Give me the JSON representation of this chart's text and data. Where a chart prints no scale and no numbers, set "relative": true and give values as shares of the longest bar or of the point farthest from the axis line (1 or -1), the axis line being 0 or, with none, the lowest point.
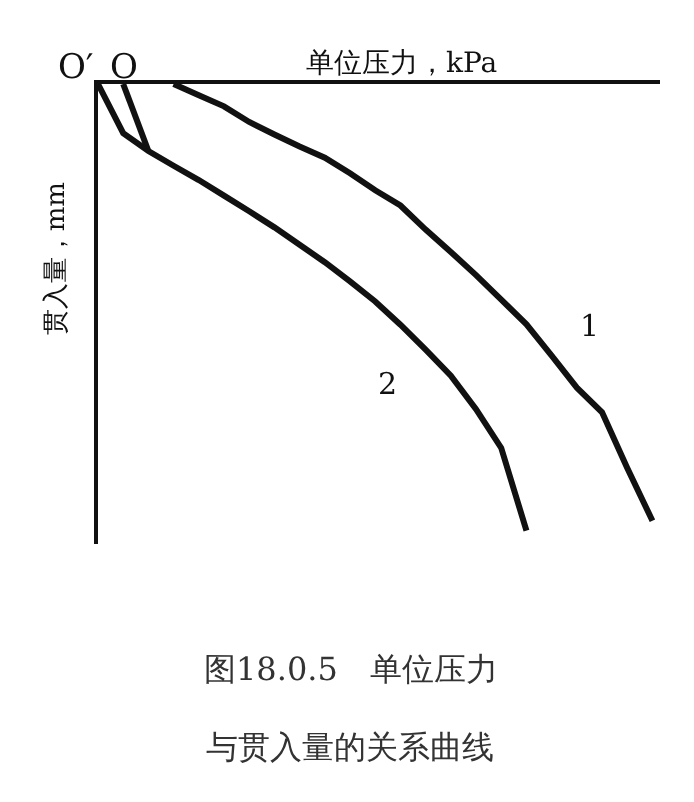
{
  "chart_data": {
    "type": "line",
    "relative": true,
    "xlabel": "单位压力，kPa",
    "ylabel": "贯入量，mm",
    "marker": "none",
    "line_style": "solid",
    "categories": [
      null,
      null,
      null,
      null,
      null,
      null,
      null,
      null,
      null,
      null,
      null,
      null,
      null,
      null,
      null,
      null,
      null,
      null,
      null,
      null,
      null,
      null,
      null
    ],
    "series": [
      {
        "name": "1",
        "color": "#111111",
        "values": [
          null,
          null,
          null,
          0,
          -0.025,
          -0.05,
          -0.085,
          -0.113,
          -0.14,
          -0.165,
          -0.2,
          -0.238,
          -0.272,
          -0.326,
          -0.376,
          -0.428,
          -0.483,
          -0.538,
          -0.608,
          -0.68,
          -0.735,
          -0.86,
          -0.978
        ]
      },
      {
        "name": "2",
        "color": "#111111",
        "values": [
          0,
          -0.11,
          -0.15,
          -0.183,
          -0.215,
          -0.25,
          -0.285,
          -0.321,
          -0.36,
          -0.399,
          -0.442,
          -0.487,
          -0.539,
          -0.595,
          -0.653,
          -0.728,
          -0.815,
          -1.0,
          null,
          null,
          null,
          null,
          null
        ]
      },
      {
        "color": "#111111",
        "values": [
          null,
          0,
          -0.15,
          null,
          null,
          null,
          null,
          null,
          null,
          null,
          null,
          null,
          null,
          null,
          null,
          null,
          null,
          null,
          null,
          null,
          null,
          null,
          null
        ]
      }
    ],
    "annotations": [
      "O′",
      "O",
      "图18.0.5　单位压力",
      "与贯入量的关系曲线"
    ]
  }
}
